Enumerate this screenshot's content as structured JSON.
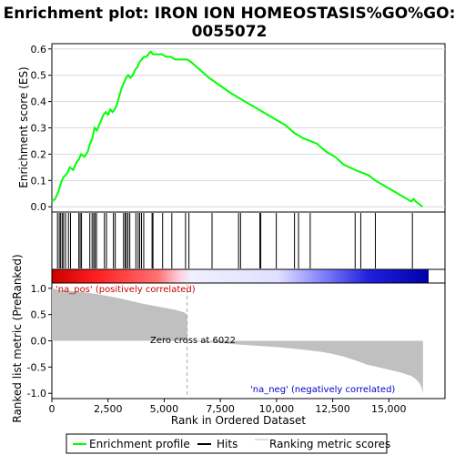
{
  "title_lines": [
    "Enrichment plot: IRON ION HOMEOSTASIS%GO%GO:",
    "0055072"
  ],
  "colors": {
    "es_line": "#00ff00",
    "hit": "#000000",
    "metric_fill": "#c0c0c0",
    "zero_cross_line": "#aaaaaa",
    "pos_label": "#cc0000",
    "neg_label": "#0000cc"
  },
  "chart_data": [
    {
      "type": "line",
      "name": "enrichment-profile",
      "ylabel": "Enrichment score (ES)",
      "xlim": [
        0,
        17500
      ],
      "ylim": [
        -0.02,
        0.62
      ],
      "yticks": [
        0.0,
        0.1,
        0.2,
        0.3,
        0.4,
        0.5,
        0.6
      ],
      "yticklabels": [
        "0.0",
        "0.1",
        "0.2",
        "0.3",
        "0.4",
        "0.5",
        "0.6"
      ],
      "grid": true,
      "series": [
        {
          "x": [
            0,
            150,
            300,
            400,
            500,
            600,
            700,
            800,
            950,
            1100,
            1200,
            1300,
            1450,
            1600,
            1700,
            1800,
            1850,
            1900,
            2000,
            2100,
            2200,
            2300,
            2400,
            2500,
            2600,
            2700,
            2800,
            2900,
            3000,
            3100,
            3200,
            3300,
            3400,
            3500,
            3600,
            3700,
            3800,
            3900,
            4000,
            4100,
            4200,
            4300,
            4400,
            4500,
            4700,
            4900,
            5100,
            5300,
            5500,
            5700,
            5900,
            6022,
            6200,
            6600,
            7000,
            7500,
            8000,
            8400,
            8800,
            9200,
            9600,
            10000,
            10400,
            10800,
            11200,
            11500,
            11800,
            12200,
            12600,
            13000,
            13500,
            13800,
            14100,
            14400,
            14800,
            15200,
            15600,
            16000,
            16100,
            16200,
            16500
          ],
          "y": [
            0.02,
            0.03,
            0.06,
            0.09,
            0.11,
            0.12,
            0.13,
            0.15,
            0.14,
            0.17,
            0.18,
            0.2,
            0.19,
            0.21,
            0.24,
            0.26,
            0.28,
            0.3,
            0.29,
            0.31,
            0.33,
            0.35,
            0.36,
            0.35,
            0.37,
            0.36,
            0.37,
            0.39,
            0.42,
            0.45,
            0.47,
            0.49,
            0.5,
            0.49,
            0.5,
            0.52,
            0.53,
            0.55,
            0.56,
            0.57,
            0.57,
            0.58,
            0.59,
            0.58,
            0.58,
            0.58,
            0.57,
            0.57,
            0.56,
            0.56,
            0.56,
            0.56,
            0.55,
            0.52,
            0.49,
            0.46,
            0.43,
            0.41,
            0.39,
            0.37,
            0.35,
            0.33,
            0.31,
            0.28,
            0.26,
            0.25,
            0.24,
            0.21,
            0.19,
            0.16,
            0.14,
            0.13,
            0.12,
            0.1,
            0.08,
            0.06,
            0.04,
            0.02,
            0.03,
            0.02,
            0.0
          ]
        }
      ]
    },
    {
      "type": "scatter",
      "name": "hits",
      "xlim": [
        0,
        17500
      ],
      "hits": [
        250,
        330,
        390,
        460,
        520,
        610,
        740,
        830,
        1200,
        1260,
        1320,
        1690,
        1790,
        1860,
        1920,
        1990,
        2340,
        2430,
        2740,
        2820,
        3190,
        3260,
        3320,
        3390,
        3470,
        3740,
        3840,
        3910,
        3990,
        4090,
        4460,
        4500,
        4930,
        5340,
        5950,
        6100,
        7130,
        8310,
        8400,
        9260,
        9300,
        9990,
        10800,
        10980,
        11500,
        13500,
        13750,
        14400,
        16050
      ]
    },
    {
      "type": "area",
      "name": "ranked-list-metric",
      "ylabel": "Ranked list metric (PreRanked)",
      "xlabel": "Rank in Ordered Dataset",
      "xlim": [
        0,
        17500
      ],
      "ylim": [
        -1.1,
        1.1
      ],
      "xticks": [
        0,
        2500,
        5000,
        7500,
        10000,
        12500,
        15000
      ],
      "xticklabels": [
        "0",
        "2,500",
        "5,000",
        "7,500",
        "10,000",
        "12,500",
        "15,000"
      ],
      "yticks": [
        -1.0,
        -0.5,
        0.0,
        0.5,
        1.0
      ],
      "yticklabels": [
        "-1.0",
        "-0.5",
        "0.0",
        "0.5",
        "1.0"
      ],
      "zero_cross": 6022,
      "series": [
        {
          "x": [
            0,
            100,
            300,
            600,
            1000,
            1500,
            2000,
            2500,
            3000,
            3500,
            4000,
            4500,
            5000,
            5500,
            5900,
            6022,
            6030,
            7000,
            8000,
            9000,
            10000,
            11000,
            12000,
            12500,
            13000,
            13500,
            14000,
            14500,
            15000,
            15500,
            16000,
            16200,
            16350,
            16450,
            16520
          ],
          "y": [
            1.0,
            0.99,
            0.97,
            0.96,
            0.94,
            0.92,
            0.89,
            0.85,
            0.81,
            0.76,
            0.71,
            0.67,
            0.63,
            0.59,
            0.54,
            0.5,
            0.0,
            -0.03,
            -0.06,
            -0.09,
            -0.12,
            -0.16,
            -0.21,
            -0.25,
            -0.3,
            -0.37,
            -0.45,
            -0.5,
            -0.55,
            -0.6,
            -0.67,
            -0.73,
            -0.8,
            -0.88,
            -1.0
          ]
        }
      ]
    }
  ],
  "annotations": {
    "pos_label": "'na_pos' (positively correlated)",
    "neg_label": "'na_neg' (negatively correlated)",
    "zero_cross_label": "Zero cross at 6022"
  },
  "legend": {
    "items": [
      {
        "label": "Enrichment profile",
        "color": "#00ff00"
      },
      {
        "label": "Hits",
        "color": "#000000"
      },
      {
        "label": "Ranking metric scores",
        "color": "#c0c0c0"
      }
    ]
  }
}
